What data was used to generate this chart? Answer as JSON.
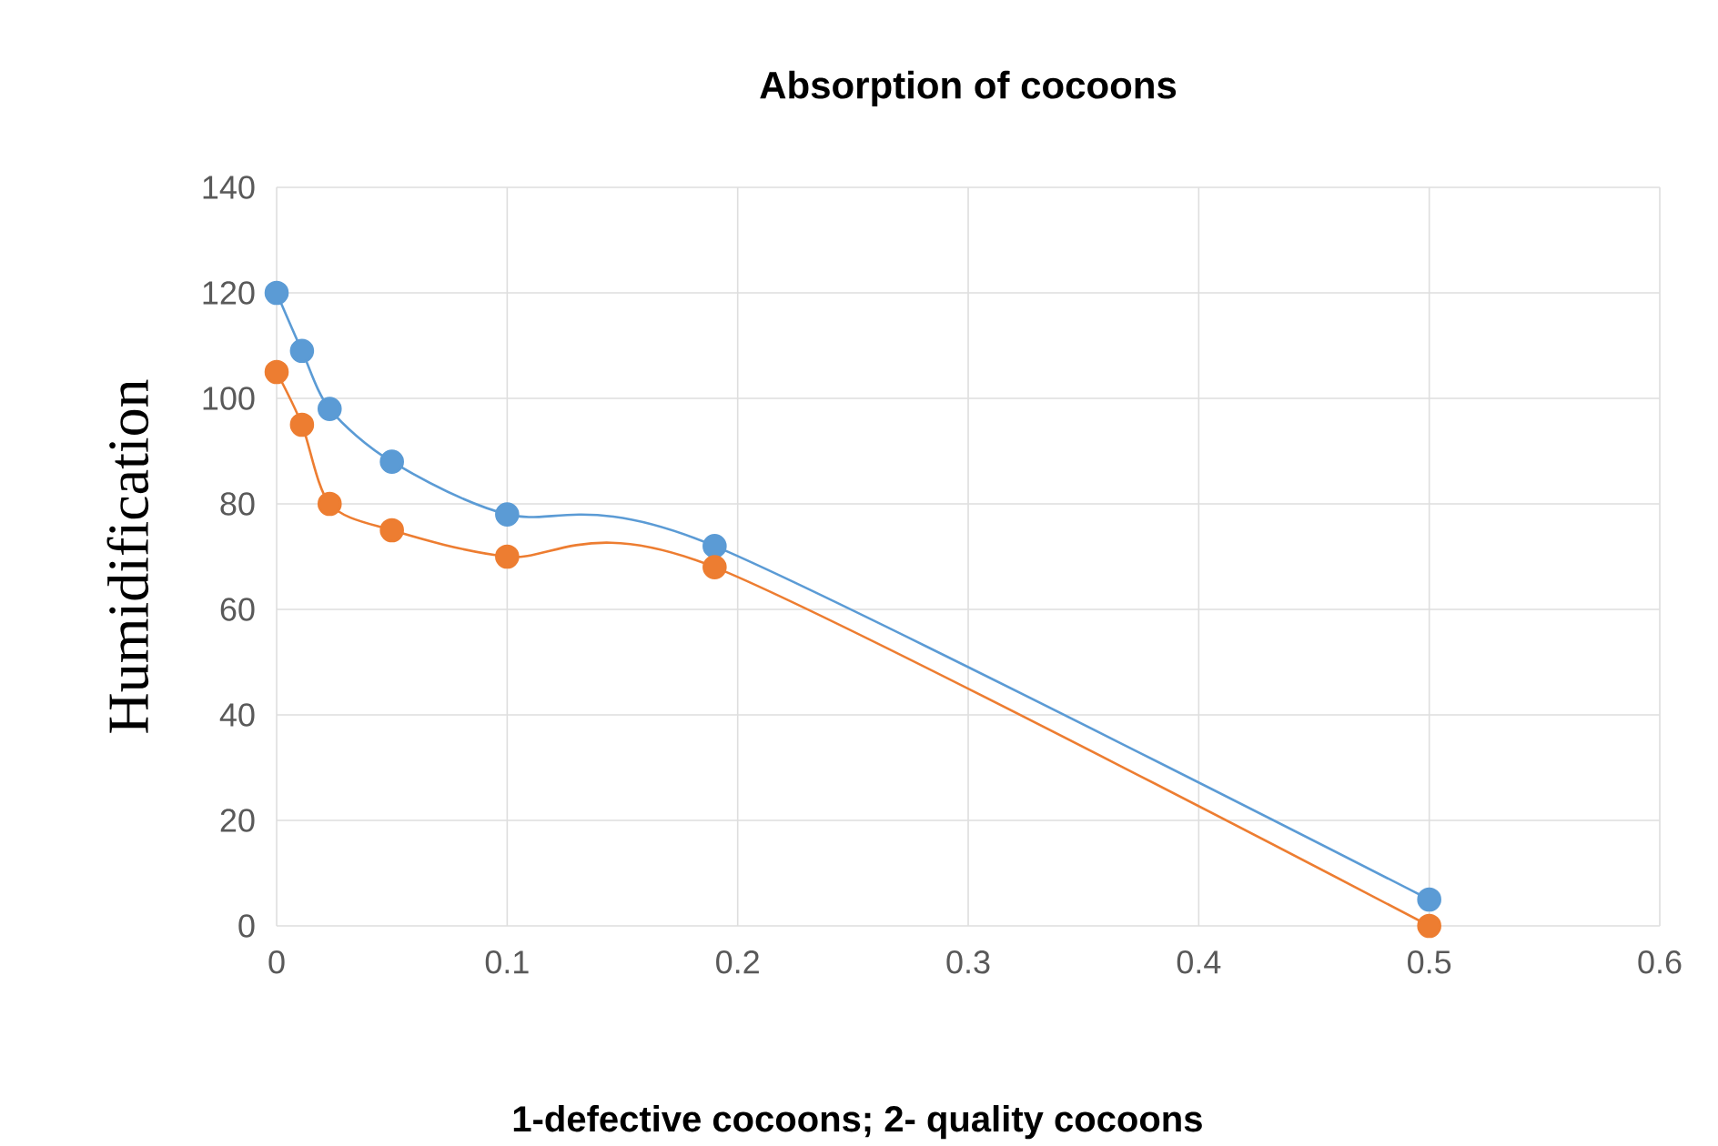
{
  "chart_data": {
    "type": "line",
    "title": "Absorption of cocoons",
    "xlabel": "1-defective cocoons; 2- quality cocoons",
    "ylabel": "Humidification",
    "series": [
      {
        "color": "#5b9bd5",
        "x": [
          0,
          0.011,
          0.023,
          0.05,
          0.1,
          0.19,
          0.5
        ],
        "values": [
          120,
          109,
          98,
          88,
          78,
          72,
          5
        ]
      },
      {
        "color": "#ed7d31",
        "x": [
          0,
          0.011,
          0.023,
          0.05,
          0.1,
          0.19,
          0.5
        ],
        "values": [
          105,
          95,
          80,
          75,
          70,
          68,
          0
        ]
      }
    ],
    "xlim": [
      0,
      0.6
    ],
    "xticks": [
      0,
      0.1,
      0.2,
      0.3,
      0.4,
      0.5,
      0.6
    ],
    "ylim": [
      0,
      140
    ],
    "yticks": [
      0,
      20,
      40,
      60,
      80,
      100,
      120,
      140
    ],
    "grid": true,
    "marker": "circle",
    "line_style": "solid"
  }
}
